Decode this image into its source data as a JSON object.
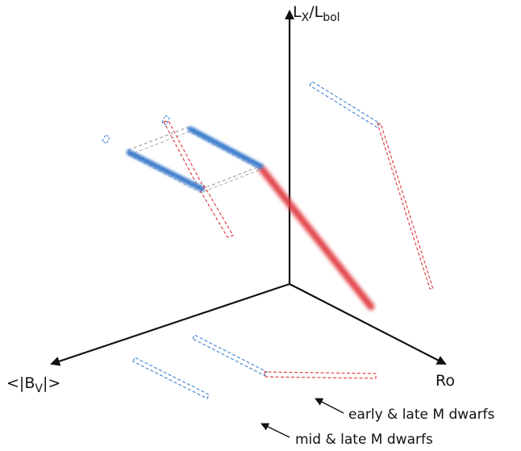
{
  "axes": {
    "vertical": {
      "main": "L",
      "sub1": "X",
      "slash": "/",
      "main2": "L",
      "sub2": "bol"
    },
    "left": {
      "prefix": "<|B",
      "sub": "V",
      "suffix": "|>"
    },
    "right": {
      "label": "Ro"
    }
  },
  "annotations": {
    "early_late": "early & late M dwarfs",
    "mid_late": "mid & late M dwarfs"
  },
  "colors": {
    "axis": "#111111",
    "blue": "#3f7fd0",
    "red": "#e0343a",
    "grey": "#999999"
  }
}
